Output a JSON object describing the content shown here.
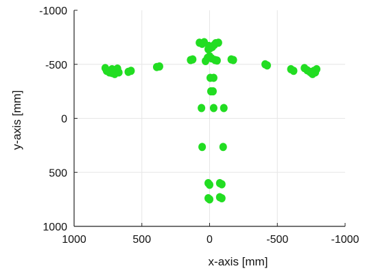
{
  "chart_data": {
    "type": "scatter",
    "xlabel": "x-axis [mm]",
    "ylabel": "y-axis [mm]",
    "xlim": [
      1000,
      -1000
    ],
    "ylim": [
      -1000,
      1000
    ],
    "x_reversed": true,
    "y_reversed": true,
    "x_ticks": [
      1000,
      500,
      0,
      -500,
      -1000
    ],
    "y_ticks": [
      -1000,
      -500,
      0,
      500,
      1000
    ],
    "x_tick_labels": [
      "1000",
      "500",
      "0",
      "-500",
      "-1000"
    ],
    "y_tick_labels": [
      "-1000",
      "-500",
      "0",
      "500",
      "1000"
    ],
    "grid": true,
    "marker_color": "#22dd22",
    "series": [
      {
        "points": [
          [
            770,
            -465
          ],
          [
            760,
            -440
          ],
          [
            740,
            -425
          ],
          [
            720,
            -455
          ],
          [
            710,
            -430
          ],
          [
            700,
            -410
          ],
          [
            690,
            -440
          ],
          [
            680,
            -460
          ],
          [
            670,
            -425
          ],
          [
            720,
            -420
          ],
          [
            600,
            -430
          ],
          [
            580,
            -440
          ],
          [
            390,
            -475
          ],
          [
            370,
            -480
          ],
          [
            140,
            -540
          ],
          [
            125,
            -545
          ],
          [
            75,
            -700
          ],
          [
            55,
            -690
          ],
          [
            40,
            -705
          ],
          [
            10,
            -640
          ],
          [
            -5,
            -650
          ],
          [
            5,
            -670
          ],
          [
            -45,
            -695
          ],
          [
            -65,
            -700
          ],
          [
            -35,
            -680
          ],
          [
            -20,
            -660
          ],
          [
            15,
            -560
          ],
          [
            0,
            -575
          ],
          [
            -15,
            -555
          ],
          [
            -40,
            -540
          ],
          [
            30,
            -530
          ],
          [
            -55,
            -535
          ],
          [
            -160,
            -545
          ],
          [
            -175,
            -540
          ],
          [
            -5,
            -375
          ],
          [
            -30,
            -375
          ],
          [
            -10,
            -250
          ],
          [
            -25,
            -250
          ],
          [
            60,
            -95
          ],
          [
            -30,
            -95
          ],
          [
            -105,
            -95
          ],
          [
            55,
            265
          ],
          [
            -100,
            265
          ],
          [
            10,
            600
          ],
          [
            0,
            615
          ],
          [
            -75,
            600
          ],
          [
            -90,
            610
          ],
          [
            10,
            740
          ],
          [
            0,
            750
          ],
          [
            -75,
            730
          ],
          [
            -90,
            740
          ],
          [
            -410,
            -500
          ],
          [
            -425,
            -490
          ],
          [
            -600,
            -455
          ],
          [
            -620,
            -440
          ],
          [
            -700,
            -465
          ],
          [
            -720,
            -445
          ],
          [
            -740,
            -430
          ],
          [
            -755,
            -415
          ],
          [
            -770,
            -440
          ],
          [
            -790,
            -455
          ],
          [
            -760,
            -410
          ],
          [
            -780,
            -425
          ]
        ]
      }
    ]
  }
}
